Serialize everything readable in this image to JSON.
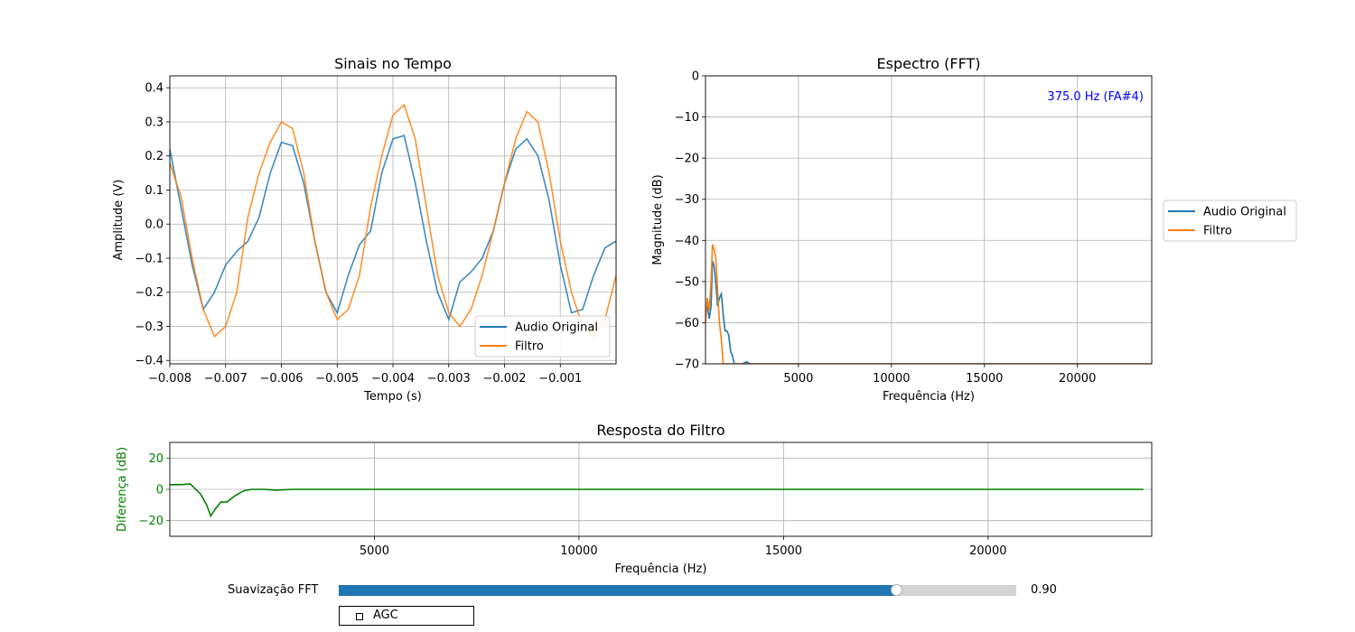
{
  "colors": {
    "original": "#1f77b4",
    "filtro": "#ff7f0e",
    "diff": "#008000",
    "peak": "#0000ff",
    "slider_fill": "#1f77b4",
    "slider_track": "#d3d3d3"
  },
  "chart_data": [
    {
      "id": "time",
      "type": "line",
      "title": "Sinais no Tempo",
      "xlabel": "Tempo (s)",
      "ylabel": "Amplitude (V)",
      "xlim": [
        -0.008,
        0.0
      ],
      "ylim": [
        -0.41,
        0.435
      ],
      "xticks": [
        -0.008,
        -0.007,
        -0.006,
        -0.005,
        -0.004,
        -0.003,
        -0.002,
        -0.001
      ],
      "xtick_labels": [
        "−0.008",
        "−0.007",
        "−0.006",
        "−0.005",
        "−0.004",
        "−0.003",
        "−0.002",
        "−0.001"
      ],
      "yticks": [
        -0.4,
        -0.3,
        -0.2,
        -0.1,
        0.0,
        0.1,
        0.2,
        0.3,
        0.4
      ],
      "ytick_labels": [
        "−0.4",
        "−0.3",
        "−0.2",
        "−0.1",
        "0.0",
        "0.1",
        "0.2",
        "0.3",
        "0.4"
      ],
      "grid": true,
      "legend": "lower-right",
      "series": [
        {
          "name": "Audio Original",
          "x": [
            -0.008,
            -0.0078,
            -0.0076,
            -0.0074,
            -0.0072,
            -0.007,
            -0.0068,
            -0.0066,
            -0.0064,
            -0.0062,
            -0.006,
            -0.0058,
            -0.0056,
            -0.0054,
            -0.0052,
            -0.005,
            -0.0048,
            -0.0046,
            -0.0044,
            -0.0042,
            -0.004,
            -0.0038,
            -0.0036,
            -0.0034,
            -0.0032,
            -0.003,
            -0.0028,
            -0.0026,
            -0.0024,
            -0.0022,
            -0.002,
            -0.0018,
            -0.0016,
            -0.0014,
            -0.0012,
            -0.001,
            -0.0008,
            -0.0006,
            -0.0004,
            -0.0002,
            0.0
          ],
          "y": [
            0.22,
            0.05,
            -0.12,
            -0.25,
            -0.2,
            -0.12,
            -0.08,
            -0.05,
            0.02,
            0.15,
            0.24,
            0.23,
            0.12,
            -0.05,
            -0.2,
            -0.26,
            -0.15,
            -0.06,
            -0.02,
            0.15,
            0.25,
            0.26,
            0.12,
            -0.05,
            -0.2,
            -0.28,
            -0.17,
            -0.14,
            -0.1,
            -0.02,
            0.12,
            0.22,
            0.25,
            0.2,
            0.07,
            -0.12,
            -0.26,
            -0.25,
            -0.15,
            -0.07,
            -0.05
          ]
        },
        {
          "name": "Filtro",
          "x": [
            -0.008,
            -0.0078,
            -0.0076,
            -0.0074,
            -0.0072,
            -0.007,
            -0.0068,
            -0.0066,
            -0.0064,
            -0.0062,
            -0.006,
            -0.0058,
            -0.0056,
            -0.0054,
            -0.0052,
            -0.005,
            -0.0048,
            -0.0046,
            -0.0044,
            -0.0042,
            -0.004,
            -0.0038,
            -0.0036,
            -0.0034,
            -0.0032,
            -0.003,
            -0.0028,
            -0.0026,
            -0.0024,
            -0.0022,
            -0.002,
            -0.0018,
            -0.0016,
            -0.0014,
            -0.0012,
            -0.001,
            -0.0008,
            -0.0006,
            -0.0004,
            -0.0002,
            0.0
          ],
          "y": [
            0.18,
            0.08,
            -0.1,
            -0.25,
            -0.33,
            -0.3,
            -0.2,
            0.02,
            0.15,
            0.24,
            0.3,
            0.28,
            0.15,
            -0.05,
            -0.2,
            -0.28,
            -0.25,
            -0.15,
            0.05,
            0.2,
            0.32,
            0.35,
            0.25,
            0.05,
            -0.15,
            -0.26,
            -0.3,
            -0.25,
            -0.15,
            -0.02,
            0.12,
            0.25,
            0.33,
            0.3,
            0.15,
            -0.05,
            -0.2,
            -0.3,
            -0.33,
            -0.28,
            -0.15
          ]
        }
      ]
    },
    {
      "id": "fft",
      "type": "line",
      "title": "Espectro (FFT)",
      "xlabel": "Frequência (Hz)",
      "ylabel": "Magnitude (dB)",
      "xlim": [
        0,
        24000
      ],
      "ylim": [
        -70,
        0
      ],
      "xticks": [
        5000,
        10000,
        15000,
        20000
      ],
      "xtick_labels": [
        "5000",
        "10000",
        "15000",
        "20000"
      ],
      "yticks": [
        0,
        -10,
        -20,
        -30,
        -40,
        -50,
        -60,
        -70
      ],
      "ytick_labels": [
        "0",
        "−10",
        "−20",
        "−30",
        "−40",
        "−50",
        "−60",
        "−70"
      ],
      "grid": true,
      "legend": "outside-right",
      "annotation": "375.0 Hz (FA#4)",
      "series": [
        {
          "name": "Audio Original",
          "x": [
            0,
            100,
            200,
            300,
            375,
            450,
            550,
            650,
            750,
            850,
            950,
            1050,
            1150,
            1250,
            1350,
            1450,
            1550,
            1650,
            1750,
            1850,
            2000,
            2200,
            2400,
            2600,
            3000,
            4000,
            6000,
            10000,
            15000,
            20000,
            24000
          ],
          "y": [
            -58,
            -56,
            -59,
            -56,
            -45,
            -46,
            -50,
            -56,
            -54,
            -53,
            -58,
            -62,
            -62,
            -63,
            -67,
            -68,
            -70,
            -70,
            -70,
            -70,
            -70,
            -69.5,
            -70,
            -70,
            -70,
            -70,
            -70,
            -70,
            -70,
            -70,
            -70
          ]
        },
        {
          "name": "Filtro",
          "x": [
            0,
            100,
            200,
            300,
            375,
            450,
            550,
            650,
            750,
            850,
            950,
            1100,
            1500,
            3000,
            6000,
            10000,
            15000,
            20000,
            24000
          ],
          "y": [
            -60,
            -54,
            -57,
            -50,
            -41,
            -42,
            -44,
            -52,
            -60,
            -64,
            -70,
            -70,
            -70,
            -70,
            -70,
            -70,
            -70,
            -70,
            -70
          ]
        }
      ]
    },
    {
      "id": "resp",
      "type": "line",
      "title": "Resposta do Filtro",
      "xlabel": "Frequência (Hz)",
      "ylabel": "Diferença (dB)",
      "xlim": [
        0,
        24000
      ],
      "ylim": [
        -30,
        30
      ],
      "xticks": [
        5000,
        10000,
        15000,
        20000
      ],
      "xtick_labels": [
        "5000",
        "10000",
        "15000",
        "20000"
      ],
      "yticks": [
        20,
        0,
        -20
      ],
      "ytick_labels": [
        "20",
        "0",
        "−20"
      ],
      "grid": true,
      "series": [
        {
          "name": "",
          "x": [
            0,
            250,
            500,
            750,
            900,
            1000,
            1100,
            1250,
            1400,
            1600,
            1800,
            2000,
            2300,
            2600,
            3000,
            5000,
            10000,
            15000,
            20000,
            23800
          ],
          "y": [
            3,
            3,
            3.5,
            -3,
            -10,
            -17,
            -13,
            -8,
            -8,
            -4,
            -1,
            0,
            0,
            -0.5,
            0,
            0,
            0,
            0,
            0,
            0
          ]
        }
      ]
    }
  ],
  "controls": {
    "slider_label": "Suavização FFT",
    "slider_value": 0.9,
    "slider_value_text": "0.90",
    "agc_label": "AGC",
    "agc_checked": false
  }
}
